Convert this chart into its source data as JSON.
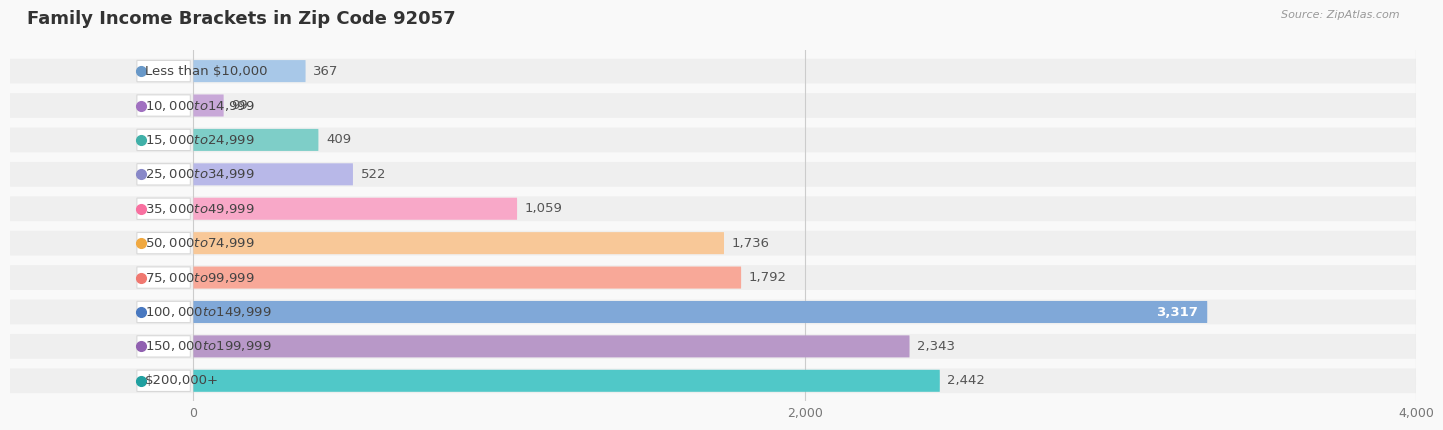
{
  "title": "Family Income Brackets in Zip Code 92057",
  "source": "Source: ZipAtlas.com",
  "categories": [
    "Less than $10,000",
    "$10,000 to $14,999",
    "$15,000 to $24,999",
    "$25,000 to $34,999",
    "$35,000 to $49,999",
    "$50,000 to $74,999",
    "$75,000 to $99,999",
    "$100,000 to $149,999",
    "$150,000 to $199,999",
    "$200,000+"
  ],
  "values": [
    367,
    99,
    409,
    522,
    1059,
    1736,
    1792,
    3317,
    2343,
    2442
  ],
  "bar_colors": [
    "#a8c8e8",
    "#c8a8d8",
    "#7ecec8",
    "#b8b8e8",
    "#f8a8c8",
    "#f8c898",
    "#f8a898",
    "#80a8d8",
    "#b898c8",
    "#50c8c8"
  ],
  "dot_colors": [
    "#6898c8",
    "#a070c0",
    "#40b0a8",
    "#8888c8",
    "#f870a0",
    "#f0a840",
    "#f07870",
    "#4878c0",
    "#9060b0",
    "#20a0a0"
  ],
  "data_label_threshold": 2800,
  "xlim_left": -600,
  "xlim_right": 4000,
  "xticks": [
    0,
    2000,
    4000
  ],
  "bar_bg_color": "#ebebeb",
  "background_color": "#f9f9f9",
  "row_bg_color": "#efefef",
  "title_fontsize": 13,
  "label_fontsize": 9.5,
  "value_fontsize": 9.5,
  "tick_fontsize": 9
}
